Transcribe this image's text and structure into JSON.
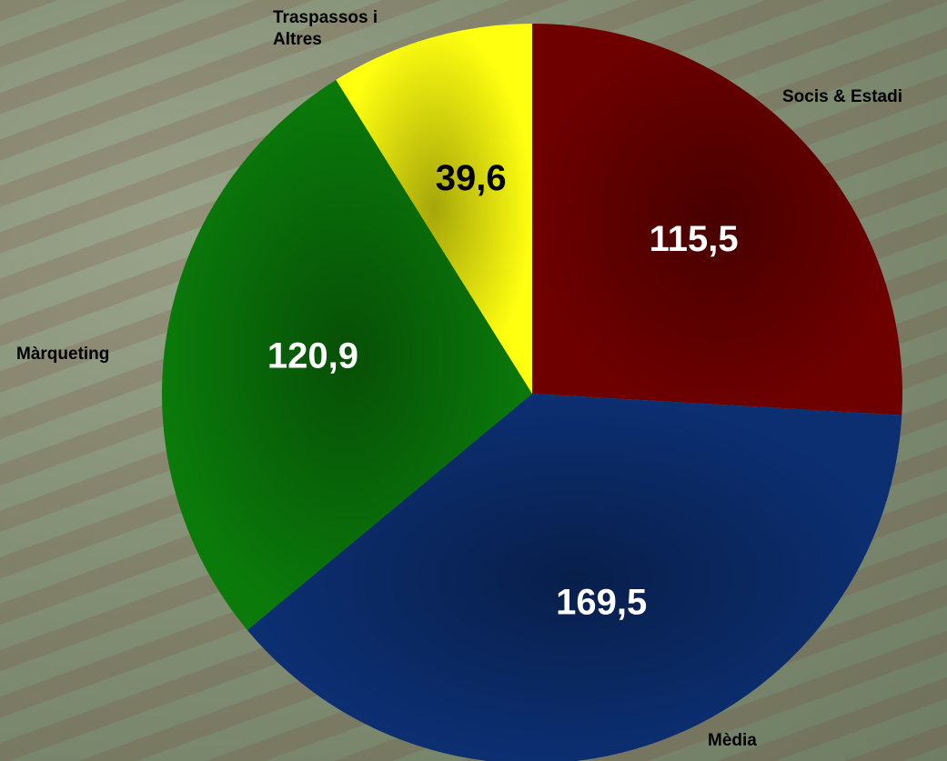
{
  "chart_data": {
    "type": "pie",
    "categories": [
      "Socis & Estadi",
      "Mèdia",
      "Màrqueting",
      "Traspassos i Altres"
    ],
    "values": [
      115.5,
      169.5,
      120.9,
      39.6
    ],
    "value_labels": [
      "115,5",
      "169,5",
      "120,9",
      "39,6"
    ],
    "colors": [
      "#6e0000",
      "#0c2f72",
      "#0a7a0a",
      "#ffff10"
    ],
    "start_angle": 0,
    "direction": "clockwise"
  }
}
